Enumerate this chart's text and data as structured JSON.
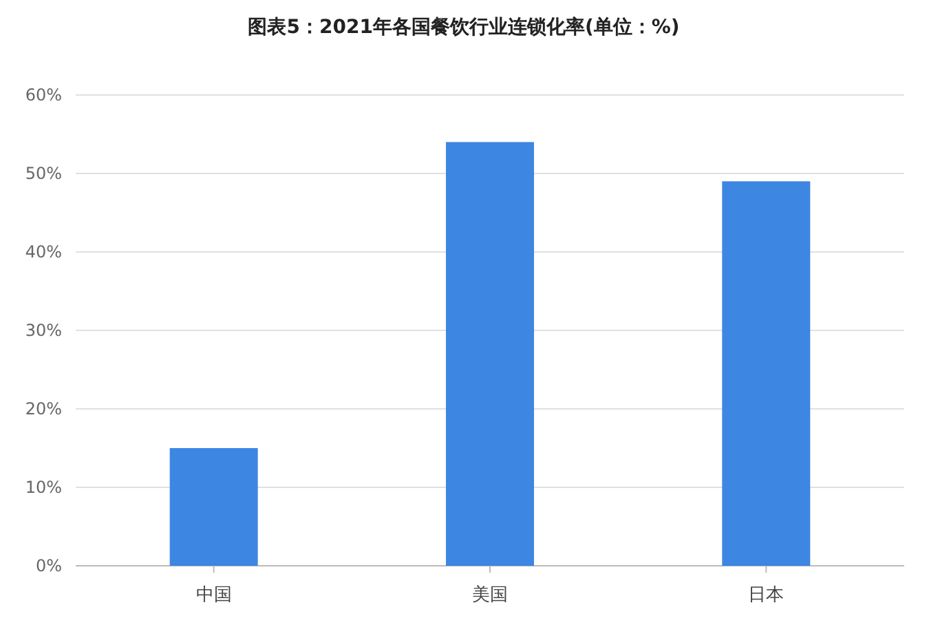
{
  "chart_data": {
    "type": "bar",
    "title": "图表5：2021年各国餐饮行业连锁化率(单位：%)",
    "categories": [
      "中国",
      "美国",
      "日本"
    ],
    "values": [
      15,
      54,
      49
    ],
    "color": "#3d86e2",
    "ylim": [
      0,
      60
    ],
    "yticks": [
      {
        "value": 0,
        "label": "0%"
      },
      {
        "value": 10,
        "label": "10%"
      },
      {
        "value": 20,
        "label": "20%"
      },
      {
        "value": 30,
        "label": "30%"
      },
      {
        "value": 40,
        "label": "40%"
      },
      {
        "value": 50,
        "label": "50%"
      },
      {
        "value": 60,
        "label": "60%"
      }
    ],
    "grid": "y"
  }
}
